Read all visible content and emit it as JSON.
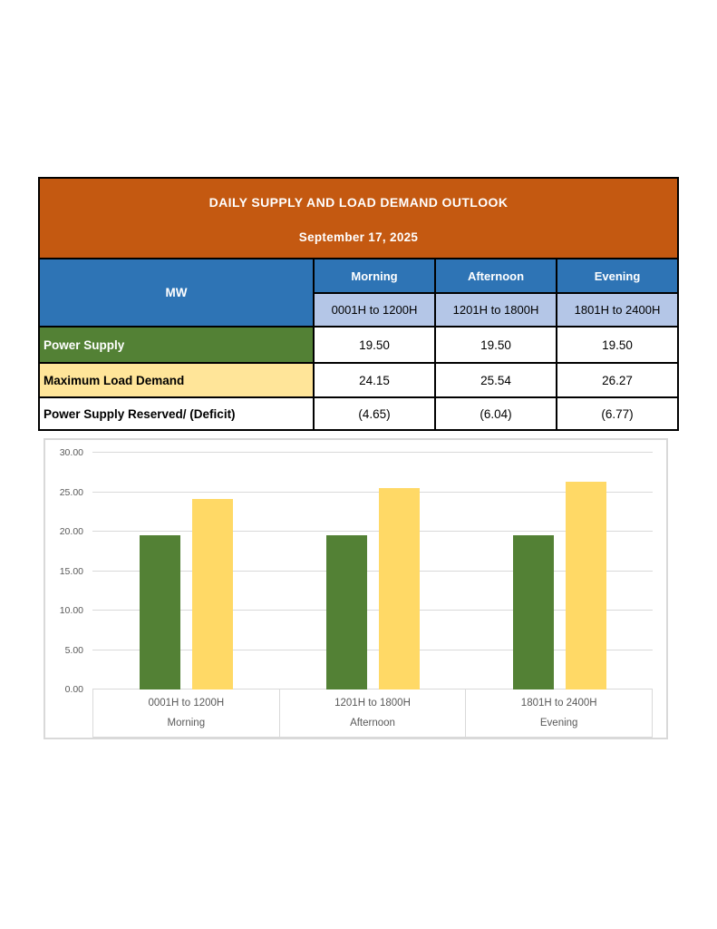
{
  "header": {
    "title": "DAILY SUPPLY AND LOAD DEMAND OUTLOOK",
    "date": "September 17, 2025"
  },
  "table": {
    "unit_label": "MW",
    "columns": [
      {
        "period": "Morning",
        "time_range": "0001H to 1200H"
      },
      {
        "period": "Afternoon",
        "time_range": "1201H to 1800H"
      },
      {
        "period": "Evening",
        "time_range": "1801H to 2400H"
      }
    ],
    "rows": [
      {
        "label": "Power Supply",
        "values": [
          "19.50",
          "19.50",
          "19.50"
        ]
      },
      {
        "label": "Maximum Load Demand",
        "values": [
          "24.15",
          "25.54",
          "26.27"
        ]
      },
      {
        "label": "Power Supply Reserved/ (Deficit)",
        "values": [
          "(4.65)",
          "(6.04)",
          "(6.77)"
        ]
      }
    ]
  },
  "chart_data": {
    "type": "bar",
    "title": "",
    "categories": [
      {
        "time_range": "0001H to 1200H",
        "period": "Morning"
      },
      {
        "time_range": "1201H to 1800H",
        "period": "Afternoon"
      },
      {
        "time_range": "1801H to 2400H",
        "period": "Evening"
      }
    ],
    "series": [
      {
        "name": "Power Supply",
        "color": "#538135",
        "values": [
          19.5,
          19.5,
          19.5
        ]
      },
      {
        "name": "Maximum Load Demand",
        "color": "#FFD966",
        "values": [
          24.15,
          25.54,
          26.27
        ]
      }
    ],
    "xlabel": "",
    "ylabel": "",
    "ylim": [
      0,
      30
    ],
    "ytick_step": 5,
    "ytick_decimals": 2,
    "grid": true,
    "legend_position": "none"
  },
  "colors": {
    "banner_bg": "#C45911",
    "period_header_bg": "#2E74B5",
    "time_header_bg": "#B4C6E7",
    "power_supply_bg": "#538135",
    "max_load_bg": "#FFE599",
    "bar_supply": "#538135",
    "bar_load": "#FFD966",
    "grid_line": "#D9D9D9",
    "axis_text": "#595959"
  }
}
